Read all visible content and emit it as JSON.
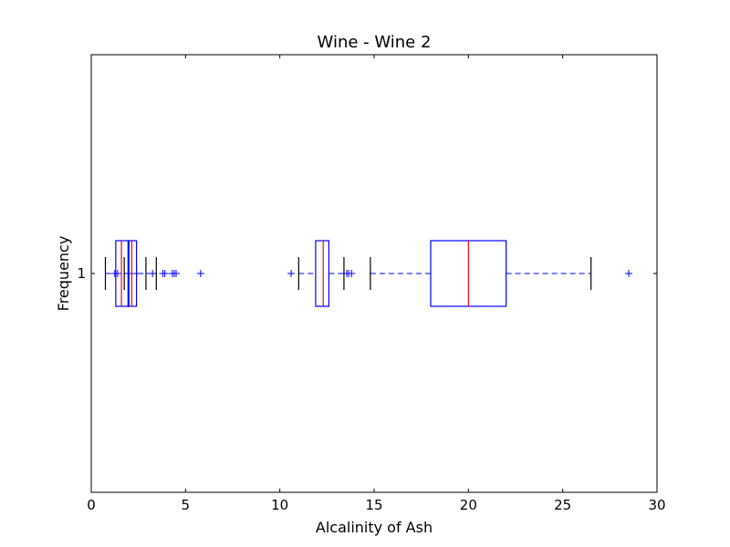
{
  "chart_data": {
    "type": "boxplot",
    "orientation": "horizontal",
    "title": "Wine - Wine 2",
    "xlabel": "Alcalinity of Ash",
    "ylabel": "Frequency",
    "xlim": [
      0,
      30
    ],
    "xticks": [
      0,
      5,
      10,
      15,
      20,
      25,
      30
    ],
    "yticks": [
      "1"
    ],
    "grid": false,
    "boxes": [
      {
        "q1": 1.3,
        "median": 1.6,
        "q3": 2.0,
        "whisker_low": 0.75,
        "whisker_high": 2.9,
        "outliers": [
          1.25,
          1.4,
          2.4,
          3.25,
          3.8,
          3.9,
          4.3,
          4.4
        ]
      },
      {
        "q1": 1.95,
        "median": 2.15,
        "q3": 2.4,
        "whisker_low": 1.75,
        "whisker_high": 3.45,
        "outliers": [
          4.5,
          5.8
        ]
      },
      {
        "q1": 11.9,
        "median": 12.3,
        "q3": 12.6,
        "whisker_low": 11.0,
        "whisker_high": 13.4,
        "outliers": [
          10.6,
          13.55,
          13.65,
          13.8
        ]
      },
      {
        "q1": 18.0,
        "median": 20.0,
        "q3": 22.0,
        "whisker_low": 14.8,
        "whisker_high": 26.5,
        "outliers": [
          28.5
        ]
      }
    ],
    "colors": {
      "box": "#0000ff",
      "median": "#ff0000",
      "cap": "#000000",
      "flier": "#0000ff"
    }
  }
}
